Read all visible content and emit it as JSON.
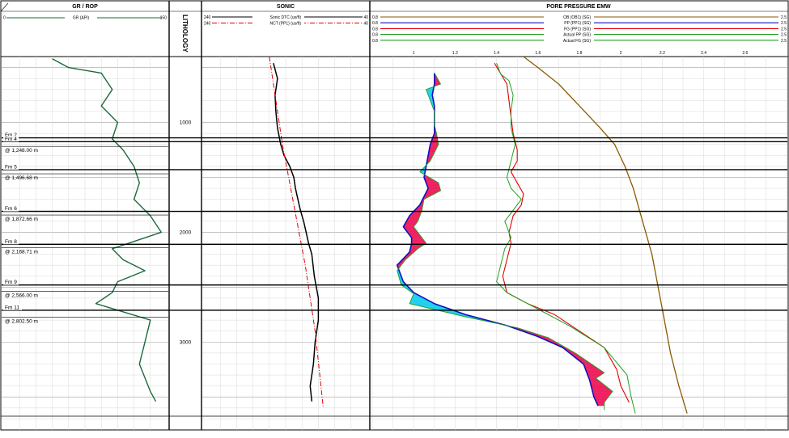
{
  "tracks": {
    "gr_rop": {
      "title": "GR / ROP",
      "curve_label": "GR (API)",
      "min": "0",
      "max": "150"
    },
    "lithology": {
      "title": "LITHOLOGY"
    },
    "sonic": {
      "title": "SONIC",
      "curves": [
        {
          "label": "Sonic DTC (us/ft)",
          "left": "240",
          "right": "40",
          "color": "#000000",
          "style": "solid"
        },
        {
          "label": "NCT (PP1) (us/ft)",
          "left": "240",
          "right": "40",
          "color": "#e00000",
          "style": "dash-dot"
        }
      ]
    },
    "pore_pressure": {
      "title": "PORE PRESSURE EMW",
      "curves": [
        {
          "label": "OB (OB1) (SG)",
          "left": "0.8",
          "right": "2.5",
          "color": "#8b5a00"
        },
        {
          "label": "PP (PP1) (SG)",
          "left": "0.8",
          "right": "2.5",
          "color": "#1010c0"
        },
        {
          "label": "FG (PP1) (SG)",
          "left": "0.8",
          "right": "2.5",
          "color": "#e00000"
        },
        {
          "label": "Actual PP (SG)",
          "left": "0.8",
          "right": "2.5",
          "color": "#20a020"
        },
        {
          "label": "Actual FG (SG)",
          "left": "0.8",
          "right": "2.5",
          "color": "#20a020"
        }
      ],
      "scale_labels": [
        "1",
        "1.2",
        "1.4",
        "1.6",
        "1.8",
        "2",
        "2.2",
        "2.4",
        "2.6"
      ]
    }
  },
  "depth_labels": [
    "1000",
    "2000",
    "3000"
  ],
  "formations": [
    {
      "name": "Fm 2",
      "depth": 1140
    },
    {
      "name": "Fm 4",
      "depth": 1175
    },
    {
      "name": "Fm 5",
      "depth": 1430
    },
    {
      "name": "Fm 6",
      "depth": 1810
    },
    {
      "name": "Fm 8",
      "depth": 2110
    },
    {
      "name": "Fm 9",
      "depth": 2480
    },
    {
      "name": "Fm 11",
      "depth": 2710
    }
  ],
  "casing_points": [
    {
      "label": "@ 1,248.00 m",
      "depth": 1248
    },
    {
      "label": "@ 1,496.68 m",
      "depth": 1496.68
    },
    {
      "label": "@ 1,872.66 m",
      "depth": 1872.66
    },
    {
      "label": "@ 2,168.71 m",
      "depth": 2168.71
    },
    {
      "label": "@ 2,566.00 m",
      "depth": 2566
    },
    {
      "label": "@ 2,802.50 m",
      "depth": 2802.5
    }
  ],
  "chart_data": {
    "type": "line",
    "y_axis": "depth (m)",
    "ylim": [
      400,
      3800
    ],
    "series": [
      {
        "name": "OB (OB1) (SG)",
        "track": "pore_pressure",
        "xlim": [
          0.8,
          2.8
        ],
        "points": [
          [
            1.53,
            400
          ],
          [
            1.6,
            500
          ],
          [
            1.7,
            650
          ],
          [
            1.8,
            850
          ],
          [
            1.9,
            1050
          ],
          [
            1.97,
            1200
          ],
          [
            2.02,
            1400
          ],
          [
            2.06,
            1600
          ],
          [
            2.09,
            1800
          ],
          [
            2.12,
            2000
          ],
          [
            2.15,
            2200
          ],
          [
            2.18,
            2500
          ],
          [
            2.21,
            2800
          ],
          [
            2.24,
            3100
          ],
          [
            2.28,
            3400
          ],
          [
            2.32,
            3650
          ]
        ]
      },
      {
        "name": "PP (PP1) (SG)",
        "track": "pore_pressure",
        "xlim": [
          0.8,
          2.8
        ],
        "points": [
          [
            1.1,
            550
          ],
          [
            1.1,
            650
          ],
          [
            1.09,
            750
          ],
          [
            1.1,
            850
          ],
          [
            1.1,
            1000
          ],
          [
            1.1,
            1100
          ],
          [
            1.08,
            1200
          ],
          [
            1.07,
            1300
          ],
          [
            1.06,
            1400
          ],
          [
            1.05,
            1500
          ],
          [
            1.07,
            1600
          ],
          [
            1.03,
            1750
          ],
          [
            0.98,
            1850
          ],
          [
            0.95,
            1950
          ],
          [
            0.99,
            2050
          ],
          [
            0.99,
            2100
          ],
          [
            0.98,
            2180
          ],
          [
            0.92,
            2300
          ],
          [
            0.95,
            2450
          ],
          [
            1.0,
            2550
          ],
          [
            1.1,
            2650
          ],
          [
            1.25,
            2750
          ],
          [
            1.45,
            2850
          ],
          [
            1.6,
            2950
          ],
          [
            1.72,
            3050
          ],
          [
            1.82,
            3200
          ],
          [
            1.85,
            3350
          ],
          [
            1.87,
            3500
          ],
          [
            1.89,
            3580
          ]
        ]
      },
      {
        "name": "FG (PP1) (SG)",
        "track": "pore_pressure",
        "xlim": [
          0.8,
          2.8
        ],
        "points": [
          [
            1.39,
            460
          ],
          [
            1.45,
            650
          ],
          [
            1.46,
            800
          ],
          [
            1.47,
            950
          ],
          [
            1.48,
            1100
          ],
          [
            1.5,
            1250
          ],
          [
            1.5,
            1350
          ],
          [
            1.47,
            1450
          ],
          [
            1.5,
            1550
          ],
          [
            1.53,
            1650
          ],
          [
            1.52,
            1750
          ],
          [
            1.48,
            1850
          ],
          [
            1.46,
            2000
          ],
          [
            1.47,
            2100
          ],
          [
            1.45,
            2250
          ],
          [
            1.43,
            2400
          ],
          [
            1.45,
            2550
          ],
          [
            1.55,
            2650
          ],
          [
            1.68,
            2750
          ],
          [
            1.8,
            2900
          ],
          [
            1.92,
            3050
          ],
          [
            1.98,
            3250
          ],
          [
            2.0,
            3400
          ],
          [
            2.04,
            3550
          ]
        ]
      },
      {
        "name": "Actual PP (SG)",
        "track": "pore_pressure",
        "xlim": [
          0.8,
          2.8
        ],
        "points": [
          [
            1.1,
            550
          ],
          [
            1.13,
            650
          ],
          [
            1.06,
            700
          ],
          [
            1.08,
            800
          ],
          [
            1.1,
            900
          ],
          [
            1.1,
            1020
          ],
          [
            1.11,
            1100
          ],
          [
            1.12,
            1200
          ],
          [
            1.08,
            1350
          ],
          [
            1.03,
            1450
          ],
          [
            1.12,
            1550
          ],
          [
            1.13,
            1620
          ],
          [
            1.05,
            1700
          ],
          [
            1.04,
            1800
          ],
          [
            1.02,
            1900
          ],
          [
            1.0,
            1950
          ],
          [
            1.06,
            2100
          ],
          [
            1.02,
            2150
          ],
          [
            0.96,
            2250
          ],
          [
            0.92,
            2350
          ],
          [
            0.94,
            2480
          ],
          [
            1.0,
            2560
          ],
          [
            0.98,
            2650
          ],
          [
            1.25,
            2770
          ],
          [
            1.5,
            2870
          ],
          [
            1.65,
            2960
          ],
          [
            1.78,
            3100
          ],
          [
            1.92,
            3280
          ],
          [
            1.88,
            3330
          ],
          [
            1.96,
            3450
          ],
          [
            1.92,
            3550
          ],
          [
            1.92,
            3620
          ]
        ]
      },
      {
        "name": "Actual FG (SG)",
        "track": "pore_pressure",
        "xlim": [
          0.8,
          2.8
        ],
        "points": [
          [
            1.4,
            460
          ],
          [
            1.42,
            560
          ],
          [
            1.46,
            620
          ],
          [
            1.48,
            750
          ],
          [
            1.47,
            900
          ],
          [
            1.47,
            1050
          ],
          [
            1.49,
            1200
          ],
          [
            1.47,
            1350
          ],
          [
            1.45,
            1500
          ],
          [
            1.47,
            1600
          ],
          [
            1.52,
            1700
          ],
          [
            1.48,
            1800
          ],
          [
            1.44,
            1900
          ],
          [
            1.47,
            2050
          ],
          [
            1.44,
            2150
          ],
          [
            1.42,
            2300
          ],
          [
            1.4,
            2450
          ],
          [
            1.45,
            2550
          ],
          [
            1.6,
            2700
          ],
          [
            1.75,
            2850
          ],
          [
            1.92,
            3050
          ],
          [
            2.03,
            3300
          ],
          [
            2.05,
            3500
          ],
          [
            2.07,
            3650
          ]
        ]
      },
      {
        "name": "Sonic DTC (us/ft)",
        "track": "sonic",
        "xlim": [
          240,
          40
        ],
        "points": [
          [
            155,
            460
          ],
          [
            150,
            600
          ],
          [
            153,
            750
          ],
          [
            152,
            900
          ],
          [
            150,
            1050
          ],
          [
            146,
            1200
          ],
          [
            142,
            1300
          ],
          [
            135,
            1400
          ],
          [
            130,
            1500
          ],
          [
            128,
            1600
          ],
          [
            125,
            1700
          ],
          [
            122,
            1800
          ],
          [
            118,
            1900
          ],
          [
            115,
            2000
          ],
          [
            112,
            2100
          ],
          [
            108,
            2200
          ],
          [
            105,
            2400
          ],
          [
            100,
            2600
          ],
          [
            100,
            2800
          ],
          [
            104,
            3000
          ],
          [
            106,
            3200
          ],
          [
            110,
            3400
          ],
          [
            108,
            3540
          ]
        ]
      },
      {
        "name": "NCT (PP1) (us/ft)",
        "track": "sonic",
        "xlim": [
          240,
          40
        ],
        "points": [
          [
            160,
            400
          ],
          [
            144,
            1200
          ],
          [
            116,
            2300
          ],
          [
            104,
            2900
          ],
          [
            94,
            3600
          ]
        ]
      },
      {
        "name": "GR (API)",
        "track": "gr_rop",
        "xlim": [
          0,
          150
        ],
        "points": [
          [
            45,
            420
          ],
          [
            60,
            500
          ],
          [
            90,
            550
          ],
          [
            100,
            700
          ],
          [
            90,
            850
          ],
          [
            105,
            1000
          ],
          [
            100,
            1150
          ],
          [
            110,
            1250
          ],
          [
            120,
            1400
          ],
          [
            125,
            1550
          ],
          [
            120,
            1700
          ],
          [
            135,
            1850
          ],
          [
            145,
            2000
          ],
          [
            100,
            2150
          ],
          [
            110,
            2250
          ],
          [
            130,
            2350
          ],
          [
            105,
            2450
          ],
          [
            100,
            2550
          ],
          [
            85,
            2650
          ],
          [
            135,
            2800
          ],
          [
            130,
            3000
          ],
          [
            125,
            3200
          ],
          [
            135,
            3450
          ],
          [
            140,
            3540
          ]
        ]
      }
    ],
    "fills": [
      {
        "between": [
          "PP (PP1) (SG)",
          "Actual PP (SG)"
        ],
        "over_color": "#f02060",
        "under_color": "#20d0f0"
      }
    ]
  }
}
